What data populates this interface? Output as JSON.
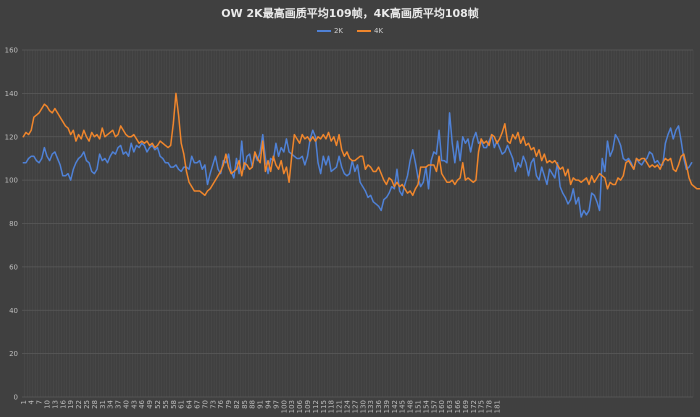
{
  "chart_data": {
    "type": "line",
    "title": "OW 2K最高画质平均109帧，4K高画质平均108帧",
    "ylim": [
      0,
      160
    ],
    "yticks": [
      0,
      20,
      40,
      60,
      80,
      100,
      120,
      140,
      160
    ],
    "xtick_labels": [
      "1",
      "4",
      "7",
      "10",
      "13",
      "16",
      "19",
      "22",
      "25",
      "28",
      "31",
      "34",
      "37",
      "40",
      "43",
      "46",
      "49",
      "52",
      "55",
      "58",
      "61",
      "64",
      "67",
      "70",
      "73",
      "76",
      "79",
      "82",
      "85",
      "88",
      "91",
      "94",
      "97",
      "100",
      "103",
      "106",
      "109",
      "112",
      "115",
      "118",
      "121",
      "124",
      "127",
      "130",
      "133",
      "136",
      "139",
      "142",
      "145",
      "148",
      "151",
      "154",
      "157",
      "160",
      "163",
      "166",
      "169",
      "172",
      "175",
      "178",
      "181"
    ],
    "grid": true,
    "legend_position": "top",
    "series": [
      {
        "name": "2K",
        "color": "#4f81d6",
        "values": [
          108,
          108,
          110,
          111,
          111,
          109,
          108,
          110,
          115,
          111,
          109,
          112,
          113,
          110,
          107,
          102,
          102,
          103,
          100,
          105,
          108,
          110,
          111,
          113,
          109,
          108,
          104,
          103,
          105,
          112,
          109,
          110,
          108,
          111,
          113,
          112,
          115,
          116,
          112,
          113,
          111,
          117,
          113,
          116,
          115,
          117,
          116,
          113,
          115,
          116,
          114,
          115,
          111,
          110,
          108,
          108,
          106,
          106,
          107,
          105,
          104,
          106,
          106,
          105,
          111,
          108,
          108,
          109,
          105,
          107,
          98,
          103,
          107,
          111,
          105,
          103,
          109,
          108,
          112,
          104,
          101,
          110,
          103,
          118,
          105,
          111,
          112,
          106,
          112,
          109,
          113,
          121,
          110,
          103,
          110,
          109,
          117,
          111,
          115,
          113,
          119,
          113,
          112,
          111,
          110,
          110,
          111,
          107,
          111,
          119,
          123,
          120,
          108,
          103,
          111,
          107,
          111,
          104,
          105,
          106,
          111,
          106,
          103,
          102,
          103,
          109,
          104,
          107,
          99,
          97,
          95,
          92,
          93,
          90,
          89,
          88,
          86,
          91,
          92,
          94,
          97,
          96,
          105,
          95,
          93,
          98,
          102,
          109,
          114,
          108,
          101,
          97,
          99,
          106,
          96,
          109,
          113,
          112,
          123,
          109,
          109,
          108,
          131,
          117,
          108,
          118,
          109,
          120,
          117,
          119,
          113,
          119,
          122,
          117,
          118,
          115,
          115,
          118,
          121,
          115,
          118,
          115,
          112,
          113,
          116,
          113,
          110,
          104,
          108,
          106,
          111,
          108,
          102,
          108,
          110,
          102,
          100,
          106,
          102,
          98,
          105,
          103,
          101,
          108,
          97,
          94,
          92,
          89,
          91,
          96,
          89,
          92,
          83,
          86,
          84,
          86,
          94,
          93,
          90,
          86,
          110,
          104,
          118,
          111,
          114,
          121,
          119,
          116,
          110,
          109,
          110,
          108,
          105,
          110,
          108,
          107,
          109,
          110,
          113,
          112,
          108,
          109,
          107,
          107,
          117,
          121,
          124,
          119,
          123,
          125,
          118,
          110,
          105,
          106,
          108
        ]
      },
      {
        "name": "4K",
        "color": "#f0862c",
        "values": [
          120,
          122,
          121,
          123,
          129,
          130,
          131,
          133,
          135,
          134,
          132,
          131,
          133,
          131,
          129,
          127,
          125,
          124,
          121,
          123,
          118,
          121,
          119,
          123,
          120,
          118,
          122,
          120,
          121,
          119,
          124,
          120,
          121,
          122,
          123,
          120,
          121,
          125,
          123,
          121,
          120,
          120,
          121,
          119,
          117,
          118,
          117,
          118,
          116,
          117,
          115,
          116,
          118,
          117,
          116,
          115,
          116,
          126,
          140,
          130,
          117,
          112,
          104,
          99,
          97,
          95,
          95,
          95,
          94,
          93,
          95,
          96,
          98,
          100,
          102,
          104,
          107,
          112,
          106,
          103,
          104,
          105,
          109,
          102,
          108,
          107,
          105,
          106,
          113,
          110,
          108,
          118,
          104,
          109,
          104,
          111,
          107,
          105,
          109,
          103,
          106,
          99,
          111,
          121,
          119,
          117,
          121,
          119,
          120,
          118,
          120,
          118,
          120,
          119,
          121,
          119,
          122,
          118,
          120,
          116,
          121,
          114,
          111,
          113,
          110,
          109,
          109,
          110,
          111,
          111,
          105,
          107,
          106,
          104,
          104,
          106,
          103,
          100,
          98,
          101,
          100,
          97,
          99,
          97,
          98,
          96,
          94,
          95,
          93,
          96,
          98,
          106,
          106,
          106,
          107,
          107,
          107,
          104,
          111,
          103,
          101,
          99,
          99,
          100,
          98,
          100,
          101,
          108,
          100,
          101,
          100,
          99,
          100,
          113,
          119,
          117,
          118,
          116,
          121,
          120,
          117,
          119,
          122,
          126,
          118,
          117,
          121,
          119,
          122,
          117,
          120,
          116,
          117,
          114,
          115,
          111,
          114,
          109,
          112,
          108,
          109,
          108,
          109,
          107,
          105,
          106,
          102,
          105,
          98,
          101,
          100,
          100,
          99,
          100,
          101,
          98,
          102,
          99,
          101,
          103,
          102,
          101,
          96,
          99,
          98,
          98,
          101,
          100,
          102,
          108,
          109,
          107,
          105,
          110,
          109,
          110,
          110,
          108,
          106,
          107,
          106,
          107,
          105,
          108,
          110,
          109,
          110,
          105,
          104,
          107,
          111,
          112,
          107,
          101,
          98,
          97,
          96,
          96
        ]
      }
    ]
  }
}
